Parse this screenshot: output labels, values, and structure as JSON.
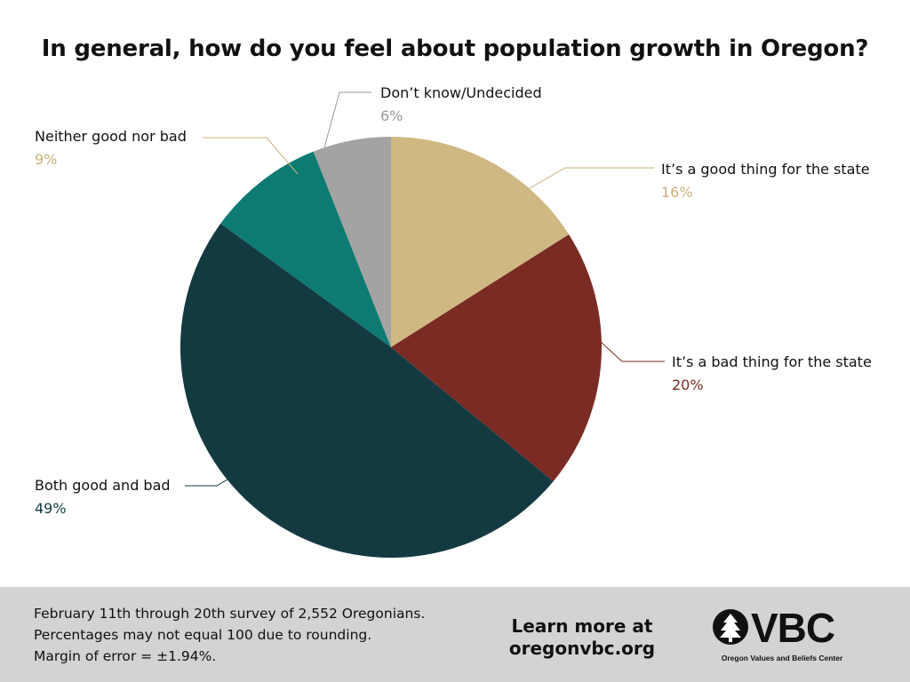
{
  "chart_data": {
    "type": "pie",
    "title": "In general, how do you feel about population growth in Oregon?",
    "start_angle_deg": 0,
    "direction": "clockwise",
    "legend": "none",
    "slices": [
      {
        "label": "It’s a good thing for the state",
        "value": 16,
        "value_label": "16%",
        "color": "#cfb882",
        "label_color": "#c9b07a"
      },
      {
        "label": "It’s a bad thing for the state",
        "value": 20,
        "value_label": "20%",
        "color": "#7a2c24",
        "label_color": "#7a2c24"
      },
      {
        "label": "Both good and bad",
        "value": 49,
        "value_label": "49%",
        "color": "#143a41",
        "label_color": "#143a41"
      },
      {
        "label": "Neither good nor bad",
        "value": 9,
        "value_label": "9%",
        "color": "#0d7b72",
        "label_color": "#c9b07a"
      },
      {
        "label": "Don’t know/Undecided",
        "value": 6,
        "value_label": "6%",
        "color": "#a3a3a3",
        "label_color": "#9a9a9a"
      }
    ]
  },
  "footer": {
    "notes": [
      "February 11th through 20th survey of 2,552 Oregonians.",
      "Percentages may not equal 100 due to rounding.",
      "Margin of error = ±1.94%."
    ],
    "learn_line1": "Learn more at",
    "learn_line2": "oregonvbc.org",
    "logo_word": "VBC",
    "logo_sub": "Oregon Values and Beliefs Center"
  },
  "colors": {
    "footer_bg": "#d3d3d3",
    "leader_line": "#c9b07a"
  }
}
